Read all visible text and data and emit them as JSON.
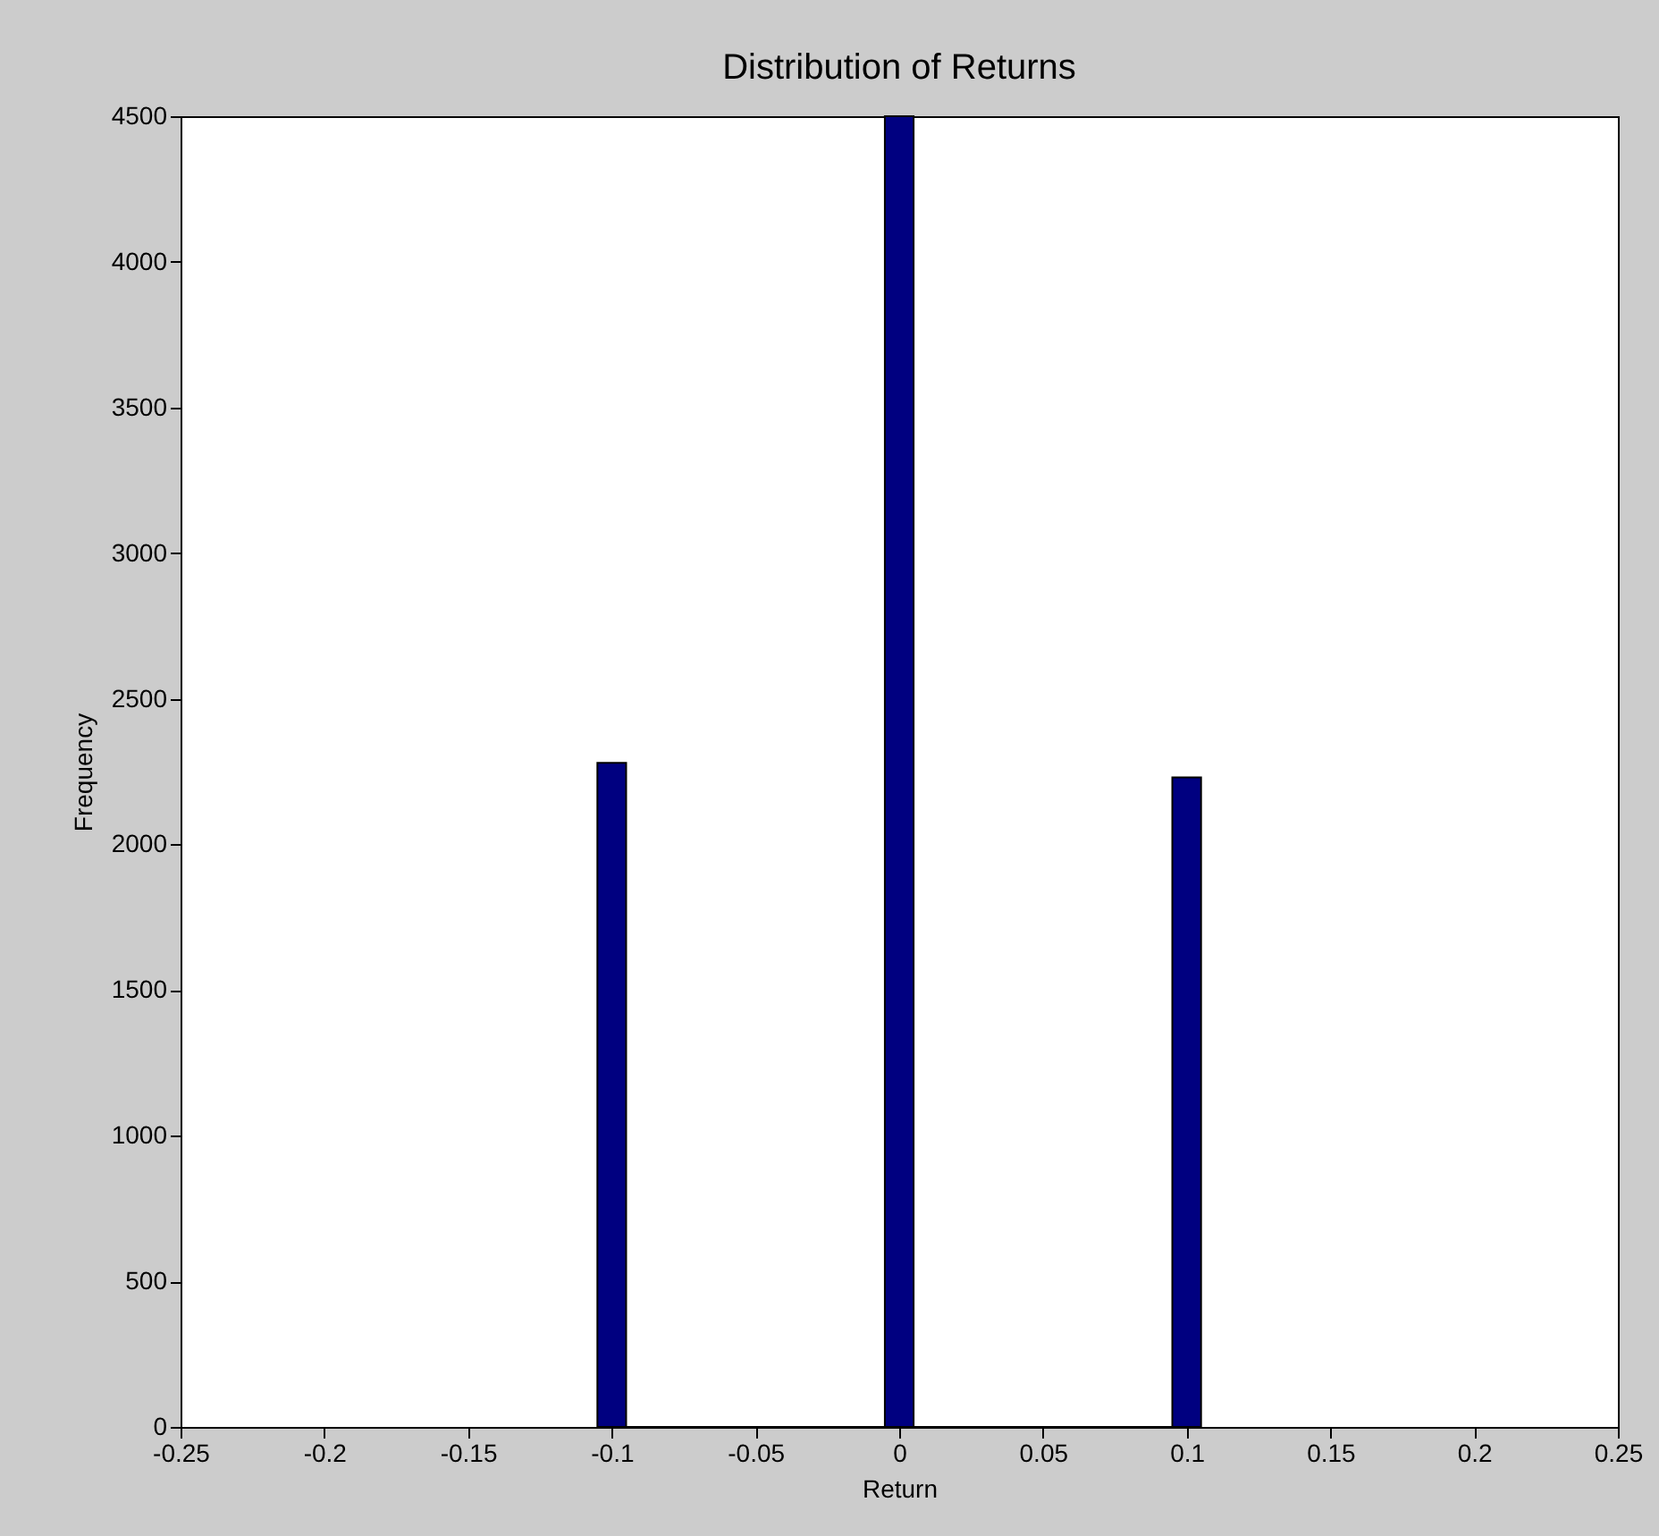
{
  "chart_data": {
    "type": "histogram",
    "title": "Distribution of Returns",
    "xlabel": "Return",
    "ylabel": "Frequency",
    "bins": [
      -0.105,
      -0.095,
      -0.005,
      0.005,
      0.095,
      0.105
    ],
    "values": [
      2280,
      0,
      4500,
      0,
      2230
    ],
    "color": "#000080",
    "xlim": [
      -0.25,
      0.25
    ],
    "xticks": [
      -0.25,
      -0.2,
      -0.15,
      -0.1,
      -0.05,
      0,
      0.05,
      0.1,
      0.15,
      0.2,
      0.25
    ],
    "ylim": [
      0,
      4500
    ],
    "yticks": [
      0,
      500,
      1000,
      1500,
      2000,
      2500,
      3000,
      3500,
      4000,
      4500
    ],
    "grid": false
  }
}
